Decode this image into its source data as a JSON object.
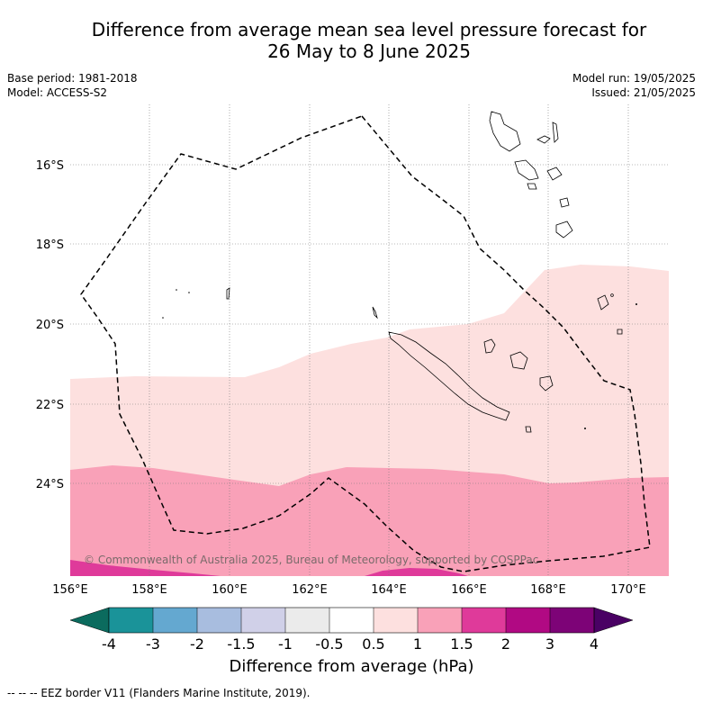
{
  "title_line1": "Difference from average mean sea level pressure forecast for",
  "title_line2": "26 May to 8 June 2025",
  "base_period": "Base period: 1981-2018",
  "model": "Model: ACCESS-S2",
  "model_run": "Model run: 19/05/2025",
  "issued": "Issued: 21/05/2025",
  "lat_labels": [
    "16°S",
    "18°S",
    "20°S",
    "22°S",
    "24°S"
  ],
  "lon_labels": [
    "156°E",
    "158°E",
    "160°E",
    "162°E",
    "164°E",
    "166°E",
    "168°E",
    "170°E"
  ],
  "copyright": "© Commonwealth of Australia 2025, Bureau of Meteorology, supported by COSPPac",
  "colorbar": {
    "title": "Difference from average (hPa)",
    "labels": [
      "-4",
      "-3",
      "-2",
      "-1.5",
      "-1",
      "-0.5",
      "0.5",
      "1",
      "1.5",
      "2",
      "3",
      "4"
    ],
    "colors": {
      "lt_m4": "#0b6b5e",
      "m4_m3": "#1a9399",
      "m3_m2": "#64a8d0",
      "m2_m15": "#a8bddf",
      "m15_m1": "#d0d0e8",
      "m1_m05": "#ebebeb",
      "m05_05": "#ffffff",
      "p05_1": "#fde0df",
      "p1_15": "#f9a1b8",
      "p15_2": "#df3a9a",
      "p2_3": "#b10983",
      "p3_4": "#7d0377",
      "gt_4": "#4a0164"
    }
  },
  "footnote": "-- -- -- EEZ border V11 (Flanders Marine Institute, 2019)."
}
